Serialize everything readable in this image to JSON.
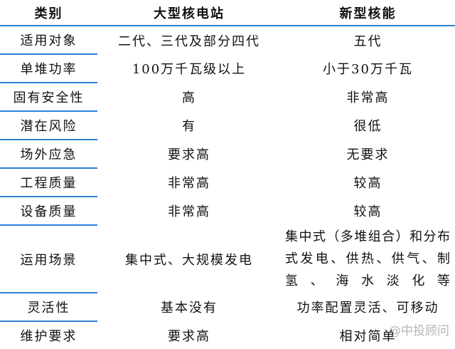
{
  "headers": [
    "类别",
    "大型核电站",
    "新型核能"
  ],
  "rows": [
    {
      "category": "适用对象",
      "large": "二代、三代及部分四代",
      "new": "五代"
    },
    {
      "category": "单堆功率",
      "large": "100万千瓦级以上",
      "new": "小于30万千瓦"
    },
    {
      "category": "固有安全性",
      "large": "高",
      "new": "非常高"
    },
    {
      "category": "潜在风险",
      "large": "有",
      "new": "很低"
    },
    {
      "category": "场外应急",
      "large": "要求高",
      "new": "无要求"
    },
    {
      "category": "工程质量",
      "large": "非常高",
      "new": "较高"
    },
    {
      "category": "设备质量",
      "large": "非常高",
      "new": "较高"
    },
    {
      "category": "运用场景",
      "large": "集中式、大规模发电",
      "new": "集中式（多堆组合）和分布式发电、供热、供气、制氢、海水淡化等"
    },
    {
      "category": "灵活性",
      "large": "基本没有",
      "new": "功率配置灵活、可移动"
    },
    {
      "category": "维护要求",
      "large": "要求高",
      "new": "相对简单"
    }
  ],
  "watermark": "@中投顾问",
  "accent_color": "#2f7fd6"
}
